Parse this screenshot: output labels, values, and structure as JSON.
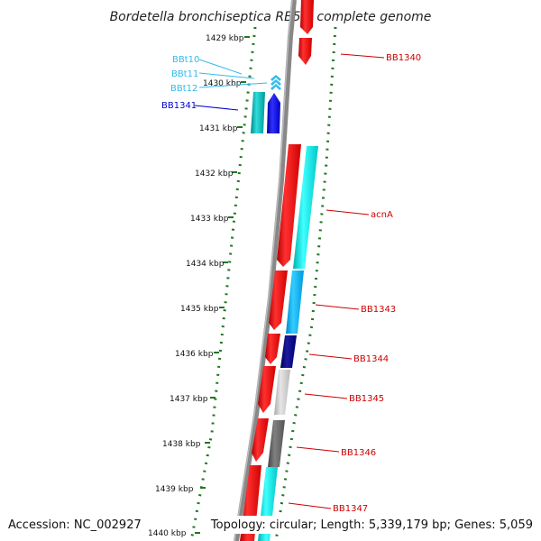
{
  "title": "Bordetella bronchiseptica RB50, complete genome",
  "accession": "Accession: NC_002927",
  "summary": "Topology: circular; Length: 5,339,179 bp; Genes: 5,059",
  "ticks": [
    "1429 kbp",
    "1430 kbp",
    "1431 kbp",
    "1432 kbp",
    "1433 kbp",
    "1434 kbp",
    "1435 kbp",
    "1436 kbp",
    "1437 kbp",
    "1438 kbp",
    "1439 kbp",
    "1440 kbp"
  ],
  "gene_labels": [
    {
      "text": "BBt10",
      "color": "#33bbee"
    },
    {
      "text": "BBt11",
      "color": "#33bbee"
    },
    {
      "text": "BBt12",
      "color": "#33bbee"
    },
    {
      "text": "BB1341",
      "color": "#0000cc"
    },
    {
      "text": "BB1340",
      "color": "#cc0000"
    },
    {
      "text": "acnA",
      "color": "#cc0000"
    },
    {
      "text": "BB1343",
      "color": "#cc0000"
    },
    {
      "text": "BB1344",
      "color": "#cc0000"
    },
    {
      "text": "BB1345",
      "color": "#cc0000"
    },
    {
      "text": "BB1346",
      "color": "#cc0000"
    },
    {
      "text": "BB1347",
      "color": "#cc0000"
    }
  ],
  "colors": {
    "cds": "#ff0000",
    "cyan": "#00e5e5",
    "teal": "#00b8b8",
    "blue": "#0000ee",
    "navy": "#00007a",
    "skyblue": "#00aaee",
    "lightgray": "#c8c8c8",
    "darkgray": "#666666",
    "tick": "#227722",
    "backbone": "#888888"
  }
}
